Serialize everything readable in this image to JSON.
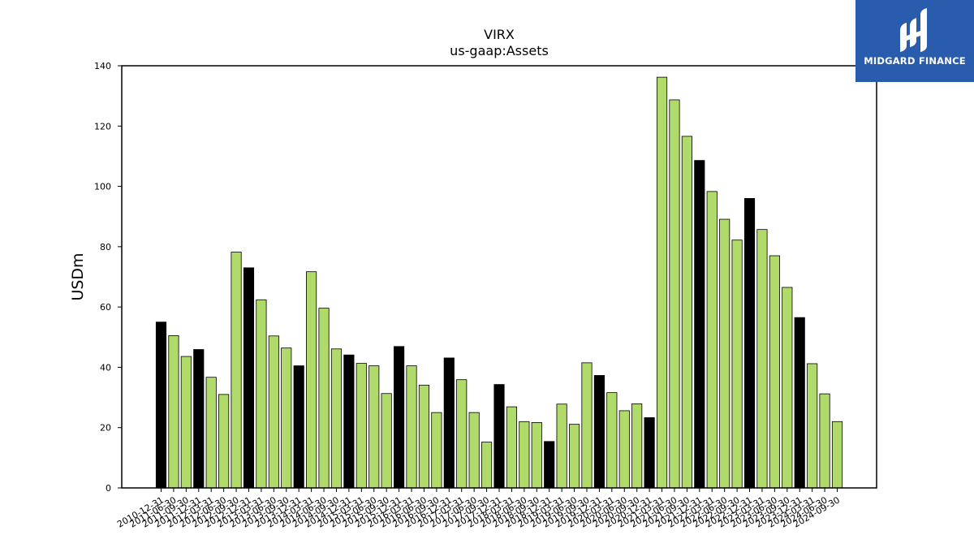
{
  "brand": {
    "name": "MIDGARD FINANCE",
    "icon": "midgard-logo-icon",
    "bg_color": "#2a5cae"
  },
  "chart_data": {
    "type": "bar",
    "title": "VIRX",
    "subtitle": "us-gaap:Assets",
    "xlabel": "",
    "ylabel": "USDm",
    "ylim": [
      0,
      140
    ],
    "yticks": [
      0,
      20,
      40,
      60,
      80,
      100,
      120,
      140
    ],
    "grid": false,
    "colors": {
      "annual": "#000000",
      "quarterly": "#b0da6a",
      "edge": "#000000"
    },
    "categories": [
      "2010-12-31",
      "2011-06-30",
      "2011-09-30",
      "2011-12-31",
      "2012-03-31",
      "2012-06-30",
      "2012-09-30",
      "2012-12-31",
      "2013-03-31",
      "2013-06-30",
      "2013-09-30",
      "2013-12-31",
      "2014-03-31",
      "2014-06-30",
      "2014-09-30",
      "2014-12-31",
      "2015-03-31",
      "2015-06-30",
      "2015-09-30",
      "2015-12-31",
      "2016-03-31",
      "2016-06-30",
      "2016-09-30",
      "2016-12-31",
      "2017-03-31",
      "2017-06-30",
      "2017-09-30",
      "2017-12-31",
      "2018-03-31",
      "2018-06-30",
      "2018-09-30",
      "2018-12-31",
      "2019-03-31",
      "2019-06-30",
      "2019-09-30",
      "2019-12-31",
      "2020-03-31",
      "2020-06-30",
      "2020-09-30",
      "2020-12-31",
      "2021-03-31",
      "2021-06-30",
      "2021-09-30",
      "2021-12-31",
      "2022-03-31",
      "2022-06-30",
      "2022-09-30",
      "2022-12-31",
      "2023-03-31",
      "2023-06-30",
      "2023-09-30",
      "2023-12-31",
      "2024-03-31",
      "2024-06-30",
      "2024-09-30"
    ],
    "values": [
      55.0,
      50.5,
      43.6,
      45.9,
      36.7,
      31.0,
      78.2,
      73.0,
      62.4,
      50.4,
      46.4,
      40.5,
      71.7,
      59.6,
      46.1,
      44.1,
      41.3,
      40.5,
      31.3,
      46.9,
      40.5,
      34.1,
      25.0,
      43.1,
      35.9,
      25.0,
      15.2,
      34.3,
      26.9,
      22.0,
      21.7,
      15.4,
      27.8,
      21.1,
      41.5,
      37.3,
      31.6,
      25.6,
      27.9,
      23.3,
      136.2,
      128.7,
      116.6,
      108.6,
      98.3,
      89.1,
      82.2,
      96.0,
      85.7,
      77.0,
      66.5,
      56.5,
      41.2,
      31.2,
      22.0
    ],
    "annual": [
      true,
      false,
      false,
      true,
      false,
      false,
      false,
      true,
      false,
      false,
      false,
      true,
      false,
      false,
      false,
      true,
      false,
      false,
      false,
      true,
      false,
      false,
      false,
      true,
      false,
      false,
      false,
      true,
      false,
      false,
      false,
      true,
      false,
      false,
      false,
      true,
      false,
      false,
      false,
      true,
      false,
      false,
      false,
      true,
      false,
      false,
      false,
      true,
      false,
      false,
      false,
      true,
      false,
      false,
      false
    ]
  }
}
